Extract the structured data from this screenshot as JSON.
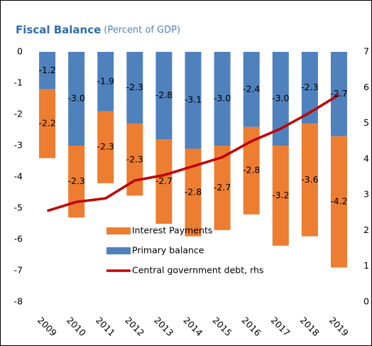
{
  "chart_data": {
    "type": "bar",
    "stacked": true,
    "title": "Fiscal Balance",
    "subtitle": "(Percent of GDP)",
    "categories": [
      "2009",
      "2010",
      "2011",
      "2012",
      "2013",
      "2014",
      "2015",
      "2016",
      "2017",
      "2018",
      "2019"
    ],
    "series": [
      {
        "name": "Interest Payments",
        "color": "#ed7d31",
        "values": [
          -2.2,
          -2.3,
          -2.3,
          -2.3,
          -2.7,
          -2.8,
          -2.7,
          -2.8,
          -3.2,
          -3.6,
          -4.2
        ],
        "value_labels": [
          "-2.2",
          "-2.3",
          "-2.3",
          "-2.3",
          "-2.7",
          "-2.8",
          "-2.7",
          "-2.8",
          "-3.2",
          "-3.6",
          "-4.2"
        ]
      },
      {
        "name": "Primary balance",
        "color": "#4f81bd",
        "values": [
          -1.2,
          -3.0,
          -1.9,
          -2.3,
          -2.8,
          -3.1,
          -3.0,
          -2.4,
          -3.0,
          -2.3,
          -2.7
        ],
        "value_labels": [
          "-1.2",
          "-3.0",
          "-1.9",
          "-2.3",
          "-2.8",
          "-3.1",
          "-3.0",
          "-2.4",
          "-3.0",
          "-2.3",
          "-2.7"
        ]
      },
      {
        "name": "Central government debt, rhs",
        "color": "#c00000",
        "type": "line",
        "axis": "y2",
        "values": [
          2.55,
          2.8,
          2.9,
          3.4,
          3.55,
          3.8,
          4.05,
          4.5,
          4.85,
          5.3,
          5.8
        ]
      }
    ],
    "ylim": [
      -8,
      0
    ],
    "yticks": [
      0,
      -1,
      -2,
      -3,
      -4,
      -5,
      -6,
      -7,
      -8
    ],
    "y2lim": [
      0,
      7
    ],
    "y2ticks": [
      7,
      6,
      5,
      4,
      3,
      2,
      1,
      0
    ],
    "grid": false,
    "legend": "lower left"
  }
}
